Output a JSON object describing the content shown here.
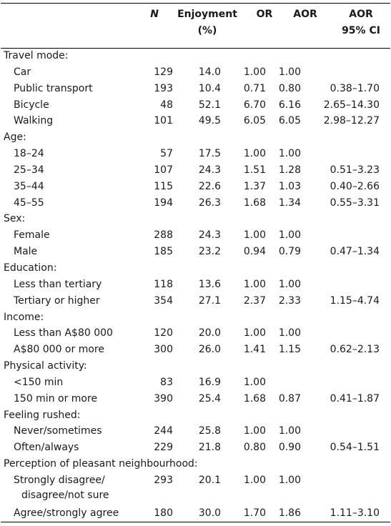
{
  "header": {
    "n": "N",
    "enjoyment_line1": "Enjoyment",
    "enjoyment_line2": "(%)",
    "or": "OR",
    "aor": "AOR",
    "ci_line1": "AOR",
    "ci_line2": "95% CI"
  },
  "rows": [
    {
      "label": "Travel mode:",
      "group": true
    },
    {
      "label": "Car",
      "n": "129",
      "enjoyment": "14.0",
      "or": "1.00",
      "aor": "1.00",
      "ci": ""
    },
    {
      "label": "Public transport",
      "n": "193",
      "enjoyment": "10.4",
      "or": "0.71",
      "aor": "0.80",
      "ci": "0.38–1.70"
    },
    {
      "label": "Bicycle",
      "n": "48",
      "enjoyment": "52.1",
      "or": "6.70",
      "aor": "6.16",
      "ci": "2.65–14.30"
    },
    {
      "label": "Walking",
      "n": "101",
      "enjoyment": "49.5",
      "or": "6.05",
      "aor": "6.05",
      "ci": "2.98–12.27"
    },
    {
      "label": "Age:",
      "group": true
    },
    {
      "label": "18–24",
      "n": "57",
      "enjoyment": "17.5",
      "or": "1.00",
      "aor": "1.00",
      "ci": ""
    },
    {
      "label": "25–34",
      "n": "107",
      "enjoyment": "24.3",
      "or": "1.51",
      "aor": "1.28",
      "ci": "0.51–3.23"
    },
    {
      "label": "35–44",
      "n": "115",
      "enjoyment": "22.6",
      "or": "1.37",
      "aor": "1.03",
      "ci": "0.40–2.66"
    },
    {
      "label": "45–55",
      "n": "194",
      "enjoyment": "26.3",
      "or": "1.68",
      "aor": "1.34",
      "ci": "0.55–3.31"
    },
    {
      "label": "Sex:",
      "group": true
    },
    {
      "label": "Female",
      "n": "288",
      "enjoyment": "24.3",
      "or": "1.00",
      "aor": "1.00",
      "ci": ""
    },
    {
      "label": "Male",
      "n": "185",
      "enjoyment": "23.2",
      "or": "0.94",
      "aor": "0.79",
      "ci": "0.47–1.34"
    },
    {
      "label": "Education:",
      "group": true
    },
    {
      "label": "Less than tertiary",
      "n": "118",
      "enjoyment": "13.6",
      "or": "1.00",
      "aor": "1.00",
      "ci": ""
    },
    {
      "label": "Tertiary or higher",
      "n": "354",
      "enjoyment": "27.1",
      "or": "2.37",
      "aor": "2.33",
      "ci": "1.15–4.74"
    },
    {
      "label": "Income:",
      "group": true
    },
    {
      "label": "Less than A$80 000",
      "n": "120",
      "enjoyment": "20.0",
      "or": "1.00",
      "aor": "1.00",
      "ci": ""
    },
    {
      "label": "A$80 000 or more",
      "n": "300",
      "enjoyment": "26.0",
      "or": "1.41",
      "aor": "1.15",
      "ci": "0.62–2.13"
    },
    {
      "label": "Physical activity:",
      "group": true
    },
    {
      "label": "<150 min",
      "n": "83",
      "enjoyment": "16.9",
      "or": "1.00",
      "aor": "",
      "ci": ""
    },
    {
      "label": "150 min or more",
      "n": "390",
      "enjoyment": "25.4",
      "or": "1.68",
      "aor": "0.87",
      "ci": "0.41–1.87"
    },
    {
      "label": "Feeling rushed:",
      "group": true
    },
    {
      "label": "Never/sometimes",
      "n": "244",
      "enjoyment": "25.8",
      "or": "1.00",
      "aor": "1.00",
      "ci": ""
    },
    {
      "label": "Often/always",
      "n": "229",
      "enjoyment": "21.8",
      "or": "0.80",
      "aor": "0.90",
      "ci": "0.54–1.51"
    },
    {
      "label": "Perception of pleasant neighbourhood:",
      "group": true
    },
    {
      "label": "Strongly disagree/",
      "label2": "disagree/not sure",
      "n": "293",
      "enjoyment": "20.1",
      "or": "1.00",
      "aor": "1.00",
      "ci": ""
    },
    {
      "label": "Agree/strongly agree",
      "n": "180",
      "enjoyment": "30.0",
      "or": "1.70",
      "aor": "1.86",
      "ci": "1.11–3.10"
    }
  ]
}
